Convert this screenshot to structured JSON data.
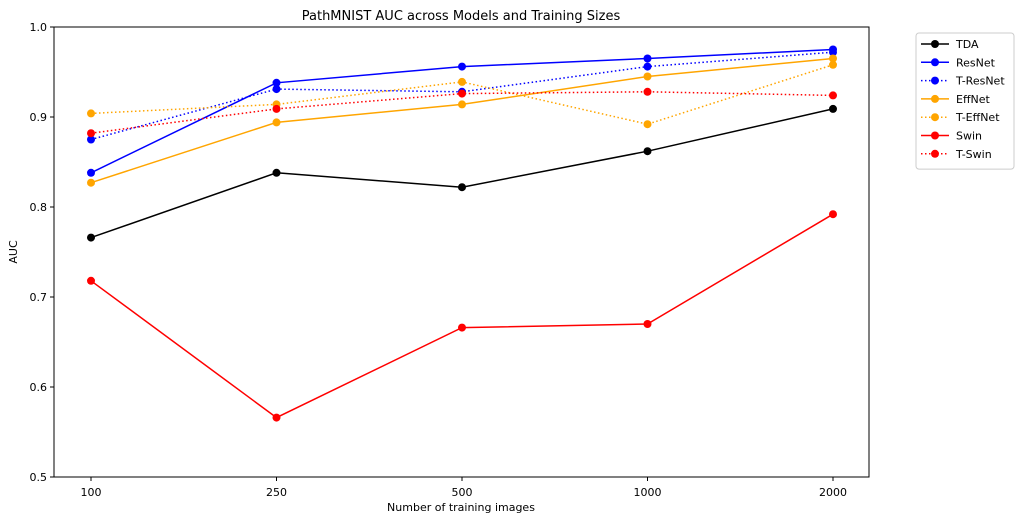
{
  "chart_data": {
    "type": "line",
    "title": "PathMNIST AUC across Models and Training Sizes",
    "xlabel": "Number of training images",
    "ylabel": "AUC",
    "categories": [
      "100",
      "250",
      "500",
      "1000",
      "2000"
    ],
    "ylim": [
      0.5,
      1.0
    ],
    "yticks": [
      "0.5",
      "0.6",
      "0.7",
      "0.8",
      "0.9",
      "1.0"
    ],
    "grid": false,
    "legend_position": "outside-top-right",
    "series": [
      {
        "name": "TDA",
        "color": "#000000",
        "style": "solid",
        "values": [
          0.766,
          0.838,
          0.822,
          0.862,
          0.909
        ]
      },
      {
        "name": "ResNet",
        "color": "#0000ff",
        "style": "solid",
        "values": [
          0.838,
          0.938,
          0.956,
          0.965,
          0.975
        ]
      },
      {
        "name": "T-ResNet",
        "color": "#0000ff",
        "style": "dotted",
        "values": [
          0.875,
          0.931,
          0.928,
          0.956,
          0.972
        ]
      },
      {
        "name": "EffNet",
        "color": "#ffa500",
        "style": "solid",
        "values": [
          0.827,
          0.894,
          0.914,
          0.945,
          0.965
        ]
      },
      {
        "name": "T-EffNet",
        "color": "#ffa500",
        "style": "dotted",
        "values": [
          0.904,
          0.914,
          0.939,
          0.892,
          0.958
        ]
      },
      {
        "name": "Swin",
        "color": "#ff0000",
        "style": "solid",
        "values": [
          0.718,
          0.566,
          0.666,
          0.67,
          0.792
        ]
      },
      {
        "name": "T-Swin",
        "color": "#ff0000",
        "style": "dotted",
        "values": [
          0.882,
          0.909,
          0.926,
          0.928,
          0.924
        ]
      }
    ]
  }
}
